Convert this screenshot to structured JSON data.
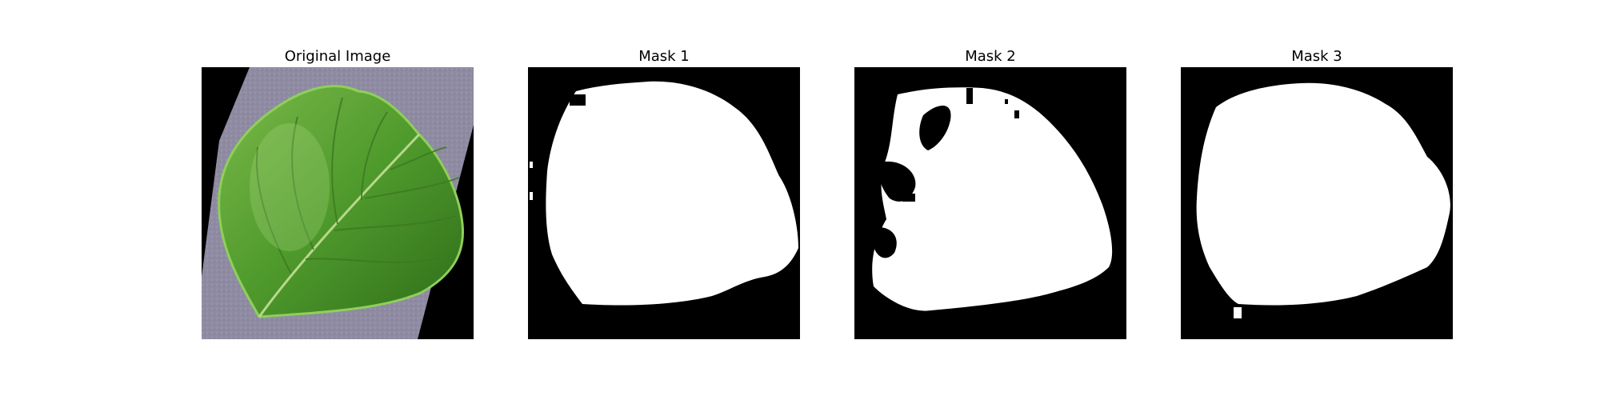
{
  "figure": {
    "panels": [
      {
        "title": "Original Image"
      },
      {
        "title": "Mask 1"
      },
      {
        "title": "Mask 2"
      },
      {
        "title": "Mask 3"
      }
    ]
  },
  "colors": {
    "background": "#ffffff",
    "mask_background": "#000000",
    "mask_foreground": "#ffffff",
    "leaf_green": "#4a8a28",
    "paper_lavender": "#8e8aa0"
  }
}
